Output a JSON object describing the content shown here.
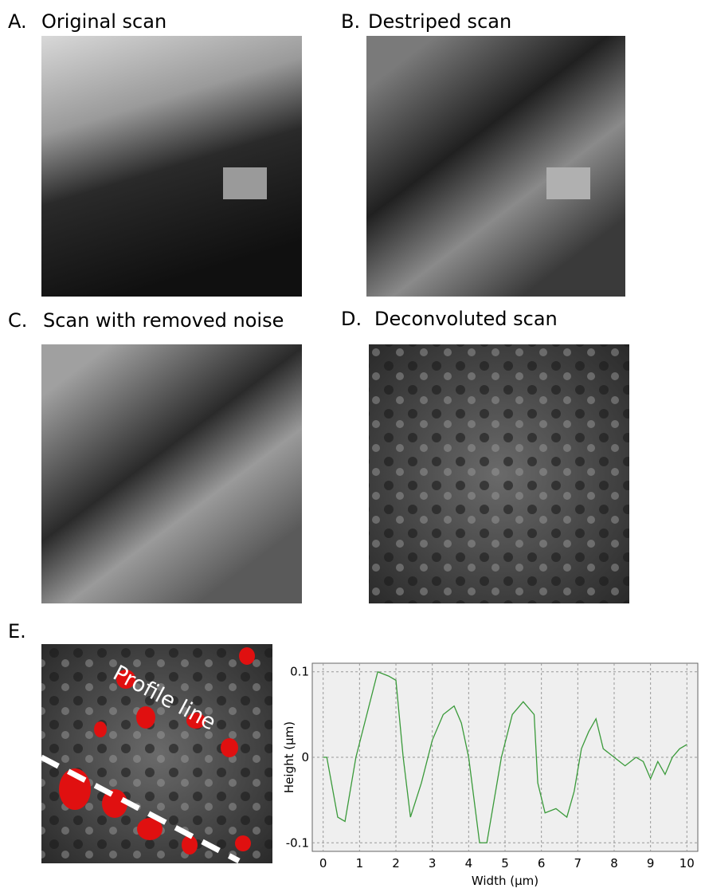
{
  "panels": [
    {
      "label": "A.",
      "title": "Original scan"
    },
    {
      "label": "B.",
      "title": "Destriped scan"
    },
    {
      "label": "C.",
      "title": "Scan with removed noise"
    },
    {
      "label": "D.",
      "title": "Deconvoluted scan"
    },
    {
      "label": "E."
    }
  ],
  "profile_label": "Profile line",
  "chart_data": {
    "type": "line",
    "xlabel": "Width (µm)",
    "ylabel": "Height (µm)",
    "x": [
      0,
      0.1,
      0.4,
      0.6,
      0.9,
      1.2,
      1.5,
      1.8,
      2.0,
      2.2,
      2.4,
      2.7,
      3.0,
      3.3,
      3.6,
      3.8,
      4.0,
      4.3,
      4.5,
      4.7,
      4.9,
      5.2,
      5.5,
      5.8,
      5.9,
      6.1,
      6.4,
      6.7,
      6.9,
      7.1,
      7.3,
      7.5,
      7.7,
      8.0,
      8.3,
      8.6,
      8.8,
      9.0,
      9.2,
      9.4,
      9.6,
      9.8,
      10.0
    ],
    "values": [
      0,
      0,
      -0.07,
      -0.075,
      0,
      0.05,
      0.1,
      0.095,
      0.09,
      0,
      -0.07,
      -0.03,
      0.02,
      0.05,
      0.06,
      0.04,
      0,
      -0.1,
      -0.1,
      -0.05,
      0,
      0.05,
      0.065,
      0.05,
      -0.03,
      -0.065,
      -0.06,
      -0.07,
      -0.04,
      0.01,
      0.03,
      0.045,
      0.01,
      0,
      -0.01,
      0,
      -0.005,
      -0.025,
      -0.005,
      -0.02,
      0,
      0.01,
      0.015
    ],
    "color": "#3a9a3a",
    "xlim": [
      -0.3,
      10.3
    ],
    "ylim": [
      -0.11,
      0.11
    ],
    "xticks": [
      0,
      1,
      2,
      3,
      4,
      5,
      6,
      7,
      8,
      9,
      10
    ],
    "yticks": [
      -0.1,
      0,
      0.1
    ],
    "grid": true
  }
}
